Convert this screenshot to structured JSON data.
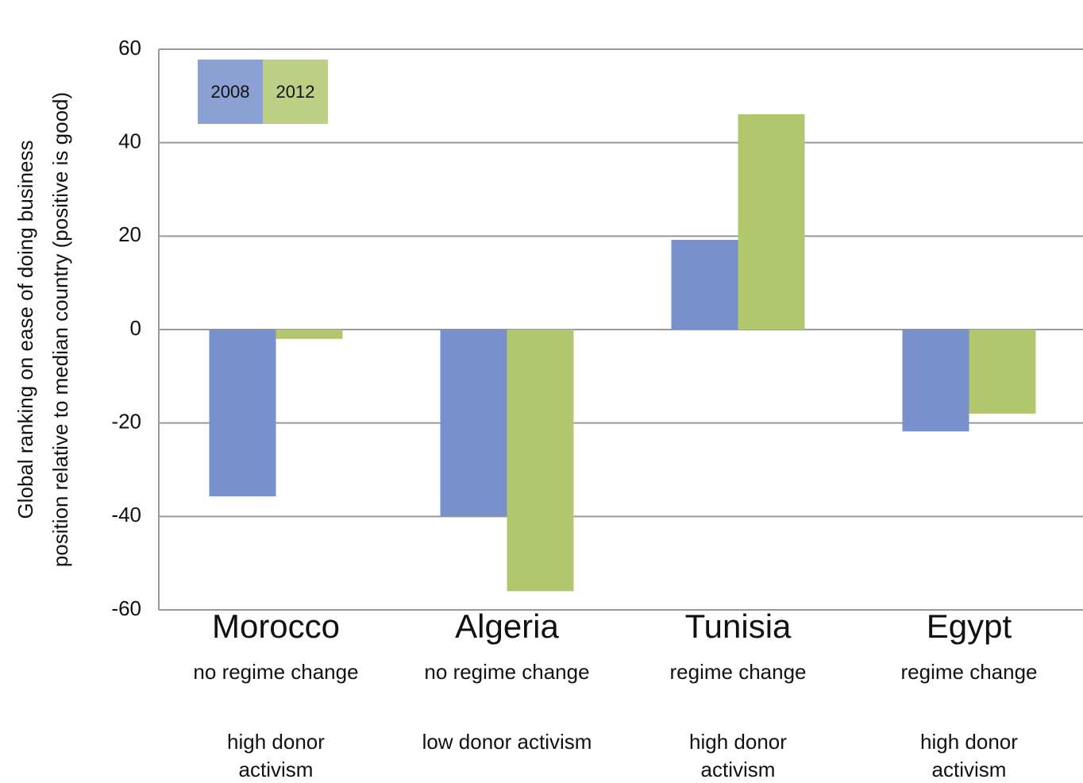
{
  "chart_data": {
    "type": "bar",
    "y_label": [
      "Global ranking on ease of doing business",
      "position relative to median country (positive is good)"
    ],
    "categories": [
      "Morocco",
      "Algeria",
      "Tunisia",
      "Egypt"
    ],
    "category_notes": [
      [
        "no regime change",
        "high donor activism"
      ],
      [
        "no regime change",
        "low donor activism"
      ],
      [
        "regime change",
        "high donor activism"
      ],
      [
        "regime change",
        "high donor activism"
      ]
    ],
    "series": [
      {
        "name": "2008",
        "color": "#7890cb",
        "values": [
          -35.7,
          -40,
          19.2,
          -21.8
        ]
      },
      {
        "name": "2012",
        "color": "#b2c76e",
        "values": [
          -2,
          -56,
          46.1,
          -18
        ]
      }
    ],
    "ylim": [
      -60,
      60
    ],
    "yticks": [
      -60,
      -40,
      -20,
      0,
      20,
      40,
      60
    ],
    "grid": true,
    "legend": "top-left"
  }
}
